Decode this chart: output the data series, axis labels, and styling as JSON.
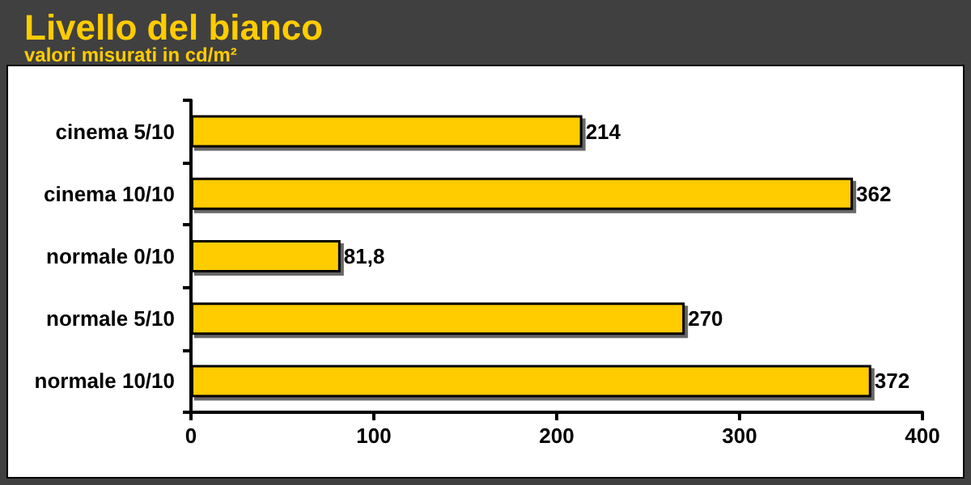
{
  "chart_data": {
    "type": "bar",
    "orientation": "horizontal",
    "title": "Livello del bianco",
    "subtitle": "valori misurati in cd/m²",
    "categories": [
      "cinema 5/10",
      "cinema 10/10",
      "normale 0/10",
      "normale 5/10",
      "normale 10/10"
    ],
    "values": [
      214,
      362,
      81.8,
      270,
      372
    ],
    "value_labels": [
      "214",
      "362",
      "81,8",
      "270",
      "372"
    ],
    "color": "#ffcc00",
    "xlim": [
      0,
      400
    ],
    "xticks": [
      0,
      100,
      200,
      300,
      400
    ],
    "grid": false
  }
}
